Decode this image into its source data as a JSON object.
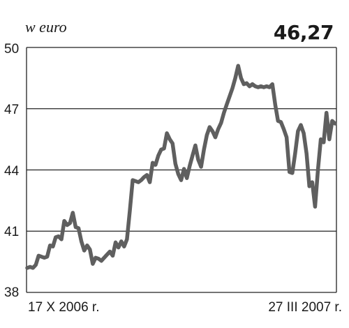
{
  "chart_data": {
    "type": "line",
    "ylabel": "w euro",
    "current_value": "46,27",
    "ylim": [
      38,
      50
    ],
    "yticks": [
      "50",
      "47",
      "44",
      "41",
      "38"
    ],
    "x_start_label": "17 X 2006 r.",
    "x_end_label": "27 III 2007 r.",
    "grid": "horizontal",
    "line_color": "#5f5f5f",
    "series": [
      {
        "values": [
          39.2,
          39.25,
          39.2,
          39.35,
          39.8,
          39.75,
          39.7,
          39.75,
          40.3,
          40.25,
          40.7,
          40.75,
          40.6,
          41.5,
          41.3,
          41.4,
          41.9,
          41.2,
          41.15,
          40.5,
          40.05,
          40.3,
          40.1,
          39.4,
          39.7,
          39.65,
          39.55,
          39.7,
          39.85,
          40,
          39.8,
          40.45,
          40.2,
          40.5,
          40.25,
          40.6,
          42,
          43.5,
          43.45,
          43.4,
          43.5,
          43.65,
          43.75,
          43.4,
          44.35,
          44.25,
          44.7,
          45,
          45.05,
          45.8,
          45.5,
          45.3,
          44.3,
          43.8,
          43.5,
          44.05,
          43.6,
          44.2,
          44.7,
          45.2,
          44.5,
          44.15,
          45,
          45.7,
          46.1,
          45.9,
          45.6,
          46,
          46.3,
          46.8,
          47.2,
          47.6,
          48,
          48.5,
          49.1,
          48.5,
          48.2,
          48.25,
          48.1,
          48.2,
          48.1,
          48.05,
          48.1,
          48.05,
          48.1,
          48.05,
          48.2,
          47.2,
          46.4,
          46.35,
          46,
          45.6,
          43.9,
          43.85,
          44.8,
          45.9,
          46.2,
          45.8,
          44.8,
          43.2,
          43.4,
          42.2,
          44,
          45.5,
          45.35,
          46.8,
          45.5,
          46.4,
          46.27
        ]
      }
    ]
  }
}
